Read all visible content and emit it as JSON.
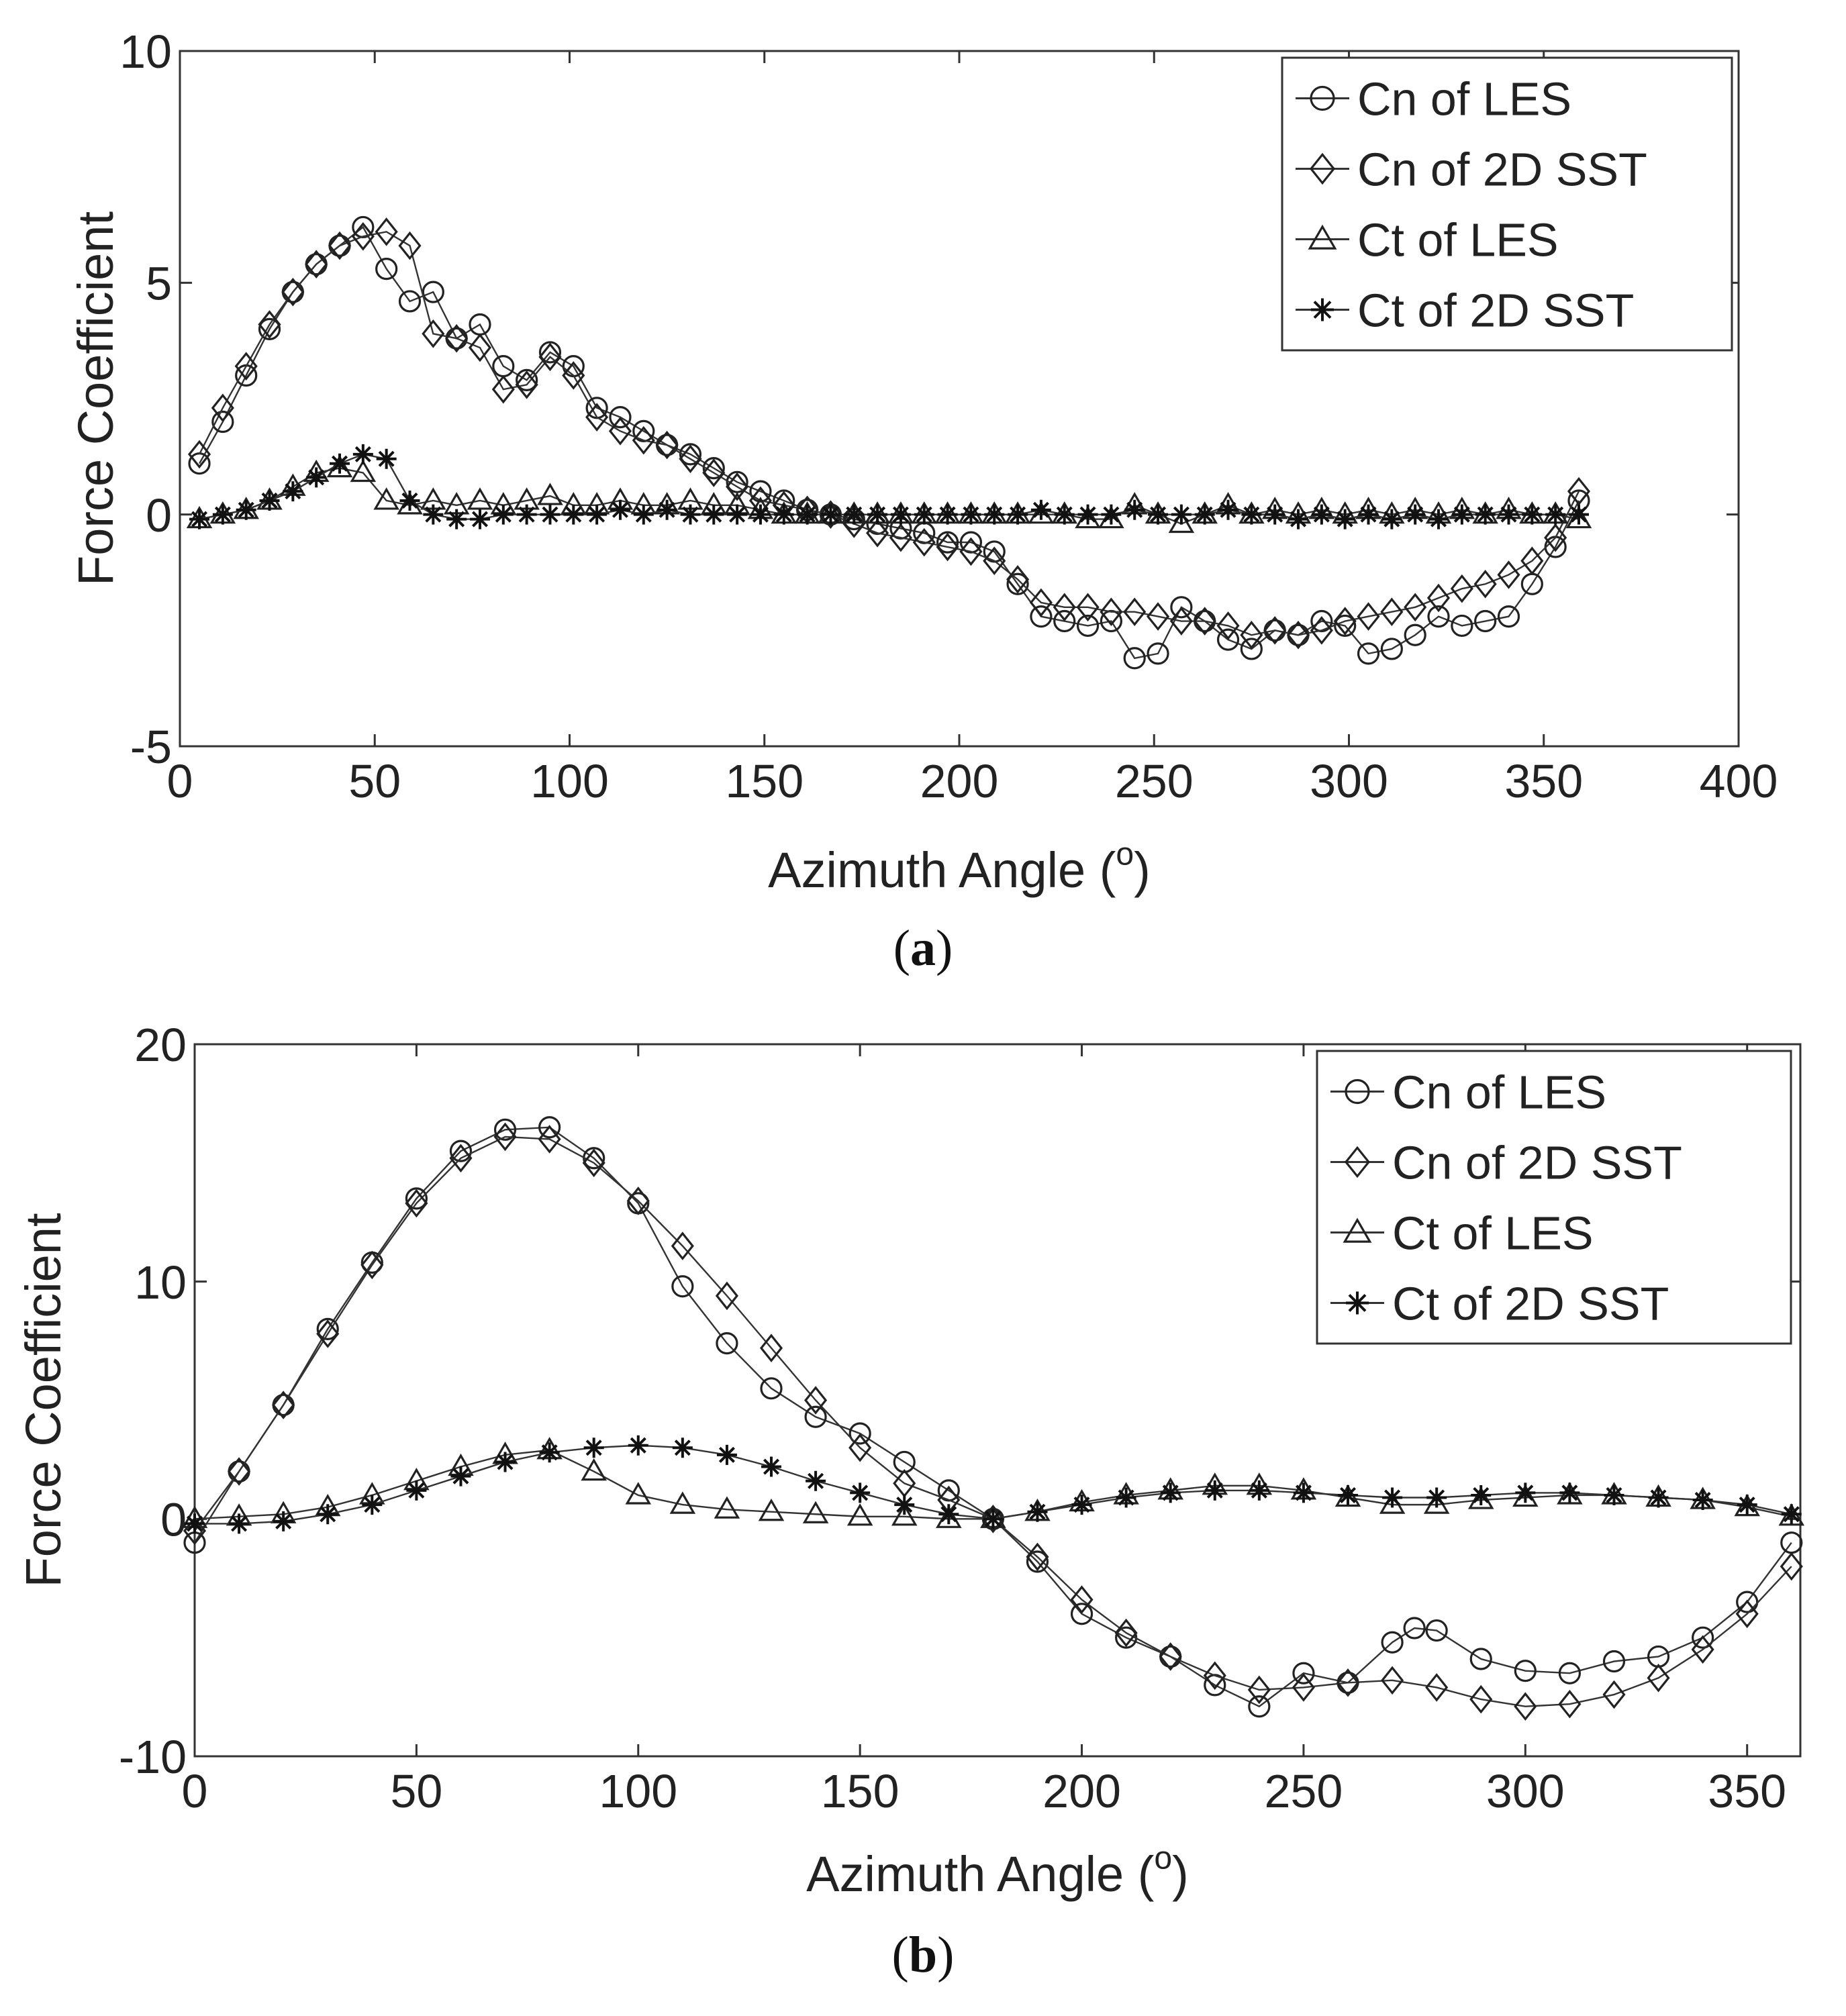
{
  "chart_data": [
    {
      "type": "line",
      "panel_label": "a",
      "xlabel": "Azimuth Angle (",
      "xlabel_superscript": "o",
      "xlabel_end": ")",
      "ylabel": "Force Coefficient",
      "xlim": [
        0,
        400
      ],
      "ylim": [
        -5,
        10
      ],
      "xticks": [
        0,
        50,
        100,
        150,
        200,
        250,
        300,
        350,
        400
      ],
      "yticks": [
        -5,
        0,
        5,
        10
      ],
      "legend_position": "top-right",
      "grid": false,
      "series": [
        {
          "name": "Cn of LES",
          "marker": "circle",
          "x": [
            5,
            11,
            17,
            23,
            29,
            35,
            41,
            47,
            53,
            59,
            65,
            71,
            77,
            83,
            89,
            95,
            101,
            107,
            113,
            119,
            125,
            131,
            137,
            143,
            149,
            155,
            161,
            167,
            173,
            179,
            185,
            191,
            197,
            203,
            209,
            215,
            221,
            227,
            233,
            239,
            245,
            251,
            257,
            263,
            269,
            275,
            281,
            287,
            293,
            299,
            305,
            311,
            317,
            323,
            329,
            335,
            341,
            347,
            353,
            359
          ],
          "y": [
            1.1,
            2.0,
            3.0,
            4.0,
            4.8,
            5.4,
            5.8,
            6.2,
            5.3,
            4.6,
            4.8,
            3.8,
            4.1,
            3.2,
            2.9,
            3.5,
            3.2,
            2.3,
            2.1,
            1.8,
            1.5,
            1.3,
            1.0,
            0.7,
            0.5,
            0.3,
            0.1,
            0.0,
            -0.1,
            -0.2,
            -0.3,
            -0.4,
            -0.6,
            -0.6,
            -0.8,
            -1.5,
            -2.2,
            -2.3,
            -2.4,
            -2.3,
            -3.1,
            -3.0,
            -2.0,
            -2.3,
            -2.7,
            -2.9,
            -2.5,
            -2.6,
            -2.3,
            -2.4,
            -3.0,
            -2.9,
            -2.6,
            -2.2,
            -2.4,
            -2.3,
            -2.2,
            -1.5,
            -0.7,
            0.3
          ]
        },
        {
          "name": "Cn of 2D SST",
          "marker": "diamond",
          "x": [
            5,
            11,
            17,
            23,
            29,
            35,
            41,
            47,
            53,
            59,
            65,
            71,
            77,
            83,
            89,
            95,
            101,
            107,
            113,
            119,
            125,
            131,
            137,
            143,
            149,
            155,
            161,
            167,
            173,
            179,
            185,
            191,
            197,
            203,
            209,
            215,
            221,
            227,
            233,
            239,
            245,
            251,
            257,
            263,
            269,
            275,
            281,
            287,
            293,
            299,
            305,
            311,
            317,
            323,
            329,
            335,
            341,
            347,
            353,
            359
          ],
          "y": [
            1.3,
            2.3,
            3.2,
            4.1,
            4.8,
            5.4,
            5.8,
            6.0,
            6.1,
            5.8,
            3.9,
            3.8,
            3.6,
            2.7,
            2.8,
            3.4,
            3.0,
            2.1,
            1.8,
            1.6,
            1.5,
            1.2,
            0.9,
            0.6,
            0.3,
            0.2,
            0.1,
            0.0,
            -0.2,
            -0.4,
            -0.5,
            -0.6,
            -0.7,
            -0.8,
            -1.0,
            -1.4,
            -1.9,
            -2.0,
            -2.0,
            -2.1,
            -2.1,
            -2.2,
            -2.3,
            -2.3,
            -2.4,
            -2.6,
            -2.5,
            -2.6,
            -2.5,
            -2.3,
            -2.2,
            -2.1,
            -2.0,
            -1.8,
            -1.6,
            -1.5,
            -1.3,
            -1.0,
            -0.5,
            0.5
          ]
        },
        {
          "name": "Ct of LES",
          "marker": "triangle",
          "x": [
            5,
            11,
            17,
            23,
            29,
            35,
            41,
            47,
            53,
            59,
            65,
            71,
            77,
            83,
            89,
            95,
            101,
            107,
            113,
            119,
            125,
            131,
            137,
            143,
            149,
            155,
            161,
            167,
            173,
            179,
            185,
            191,
            197,
            203,
            209,
            215,
            221,
            227,
            233,
            239,
            245,
            251,
            257,
            263,
            269,
            275,
            281,
            287,
            293,
            299,
            305,
            311,
            317,
            323,
            329,
            335,
            341,
            347,
            353,
            359
          ],
          "y": [
            -0.1,
            0.0,
            0.1,
            0.3,
            0.6,
            0.9,
            1.0,
            0.9,
            0.3,
            0.2,
            0.3,
            0.2,
            0.3,
            0.2,
            0.3,
            0.4,
            0.2,
            0.2,
            0.3,
            0.2,
            0.2,
            0.3,
            0.2,
            0.2,
            0.1,
            0.0,
            0.0,
            0.0,
            0.0,
            0.0,
            0.0,
            0.0,
            0.0,
            0.0,
            0.0,
            0.0,
            0.0,
            0.0,
            -0.1,
            -0.1,
            0.2,
            0.0,
            -0.2,
            0.0,
            0.2,
            0.0,
            0.1,
            0.0,
            0.1,
            0.0,
            0.1,
            0.0,
            0.1,
            0.0,
            0.1,
            0.0,
            0.1,
            0.0,
            0.0,
            -0.1
          ]
        },
        {
          "name": "Ct of 2D SST",
          "marker": "star",
          "x": [
            5,
            11,
            17,
            23,
            29,
            35,
            41,
            47,
            53,
            59,
            65,
            71,
            77,
            83,
            89,
            95,
            101,
            107,
            113,
            119,
            125,
            131,
            137,
            143,
            149,
            155,
            161,
            167,
            173,
            179,
            185,
            191,
            197,
            203,
            209,
            215,
            221,
            227,
            233,
            239,
            245,
            251,
            257,
            263,
            269,
            275,
            281,
            287,
            293,
            299,
            305,
            311,
            317,
            323,
            329,
            335,
            341,
            347,
            353,
            359
          ],
          "y": [
            -0.1,
            0.0,
            0.1,
            0.3,
            0.5,
            0.8,
            1.1,
            1.3,
            1.2,
            0.3,
            0.0,
            -0.1,
            -0.1,
            0.0,
            0.0,
            0.0,
            0.0,
            0.0,
            0.1,
            0.0,
            0.1,
            0.0,
            0.0,
            0.0,
            0.0,
            0.0,
            0.0,
            0.0,
            0.0,
            0.0,
            0.0,
            0.0,
            0.0,
            0.0,
            0.0,
            0.0,
            0.1,
            0.0,
            0.0,
            0.0,
            0.1,
            0.0,
            0.0,
            0.0,
            0.1,
            0.0,
            0.0,
            -0.1,
            0.0,
            -0.1,
            0.0,
            -0.1,
            0.0,
            -0.1,
            0.0,
            0.0,
            0.0,
            0.0,
            0.0,
            0.0
          ]
        }
      ]
    },
    {
      "type": "line",
      "panel_label": "b",
      "xlabel": "Azimuth Angle (",
      "xlabel_superscript": "o",
      "xlabel_end": ")",
      "ylabel": "Force Coefficient",
      "xlim": [
        0,
        362
      ],
      "ylim": [
        -10,
        20
      ],
      "xticks": [
        0,
        50,
        100,
        150,
        200,
        250,
        300,
        350
      ],
      "yticks": [
        -10,
        0,
        10,
        20
      ],
      "legend_position": "top-right",
      "grid": false,
      "series": [
        {
          "name": "Cn of LES",
          "marker": "circle",
          "x": [
            0,
            10,
            20,
            30,
            40,
            50,
            60,
            70,
            80,
            90,
            100,
            110,
            120,
            130,
            140,
            150,
            160,
            170,
            180,
            190,
            200,
            210,
            220,
            230,
            240,
            250,
            260,
            270,
            275,
            280,
            290,
            300,
            310,
            320,
            330,
            340,
            350,
            360
          ],
          "y": [
            -1.0,
            2.0,
            4.8,
            8.0,
            10.8,
            13.5,
            15.5,
            16.4,
            16.5,
            15.2,
            13.3,
            9.8,
            7.4,
            5.5,
            4.3,
            3.6,
            2.4,
            1.2,
            0.0,
            -1.8,
            -4.0,
            -5.0,
            -5.8,
            -7.0,
            -7.9,
            -6.5,
            -6.9,
            -5.2,
            -4.6,
            -4.7,
            -5.9,
            -6.4,
            -6.5,
            -6.0,
            -5.8,
            -5.0,
            -3.5,
            -1.0
          ]
        },
        {
          "name": "Cn of 2D SST",
          "marker": "diamond",
          "x": [
            0,
            10,
            20,
            30,
            40,
            50,
            60,
            70,
            80,
            90,
            100,
            110,
            120,
            130,
            140,
            150,
            160,
            170,
            180,
            190,
            200,
            210,
            220,
            230,
            240,
            250,
            260,
            270,
            280,
            290,
            300,
            310,
            320,
            330,
            340,
            350,
            360
          ],
          "y": [
            -0.5,
            2.0,
            4.8,
            7.8,
            10.7,
            13.3,
            15.2,
            16.1,
            16.0,
            15.0,
            13.4,
            11.5,
            9.4,
            7.2,
            5.0,
            3.0,
            1.5,
            0.8,
            0.0,
            -1.6,
            -3.4,
            -4.8,
            -5.8,
            -6.6,
            -7.2,
            -7.1,
            -6.9,
            -6.8,
            -7.1,
            -7.6,
            -7.9,
            -7.8,
            -7.4,
            -6.7,
            -5.5,
            -4.0,
            -2.0
          ]
        },
        {
          "name": "Ct of LES",
          "marker": "triangle",
          "x": [
            0,
            10,
            20,
            30,
            40,
            50,
            60,
            70,
            80,
            90,
            100,
            110,
            120,
            130,
            140,
            150,
            160,
            170,
            180,
            190,
            200,
            210,
            220,
            230,
            240,
            250,
            260,
            270,
            280,
            290,
            300,
            310,
            320,
            330,
            340,
            350,
            360
          ],
          "y": [
            0.0,
            0.1,
            0.2,
            0.5,
            1.0,
            1.6,
            2.2,
            2.7,
            2.9,
            2.0,
            1.0,
            0.6,
            0.4,
            0.3,
            0.2,
            0.1,
            0.1,
            0.0,
            0.0,
            0.3,
            0.7,
            1.0,
            1.2,
            1.4,
            1.4,
            1.2,
            0.9,
            0.6,
            0.6,
            0.8,
            0.9,
            1.0,
            1.0,
            0.9,
            0.8,
            0.5,
            0.1
          ]
        },
        {
          "name": "Ct of 2D SST",
          "marker": "star",
          "x": [
            0,
            10,
            20,
            30,
            40,
            50,
            60,
            70,
            80,
            90,
            100,
            110,
            120,
            130,
            140,
            150,
            160,
            170,
            180,
            190,
            200,
            210,
            220,
            230,
            240,
            250,
            260,
            270,
            280,
            290,
            300,
            310,
            320,
            330,
            340,
            350,
            360
          ],
          "y": [
            -0.2,
            -0.2,
            -0.1,
            0.2,
            0.6,
            1.2,
            1.8,
            2.4,
            2.8,
            3.0,
            3.1,
            3.0,
            2.7,
            2.2,
            1.6,
            1.1,
            0.6,
            0.2,
            0.0,
            0.3,
            0.6,
            0.9,
            1.1,
            1.2,
            1.2,
            1.1,
            1.0,
            0.9,
            0.9,
            1.0,
            1.1,
            1.1,
            1.0,
            0.9,
            0.8,
            0.6,
            0.2
          ]
        }
      ]
    }
  ]
}
